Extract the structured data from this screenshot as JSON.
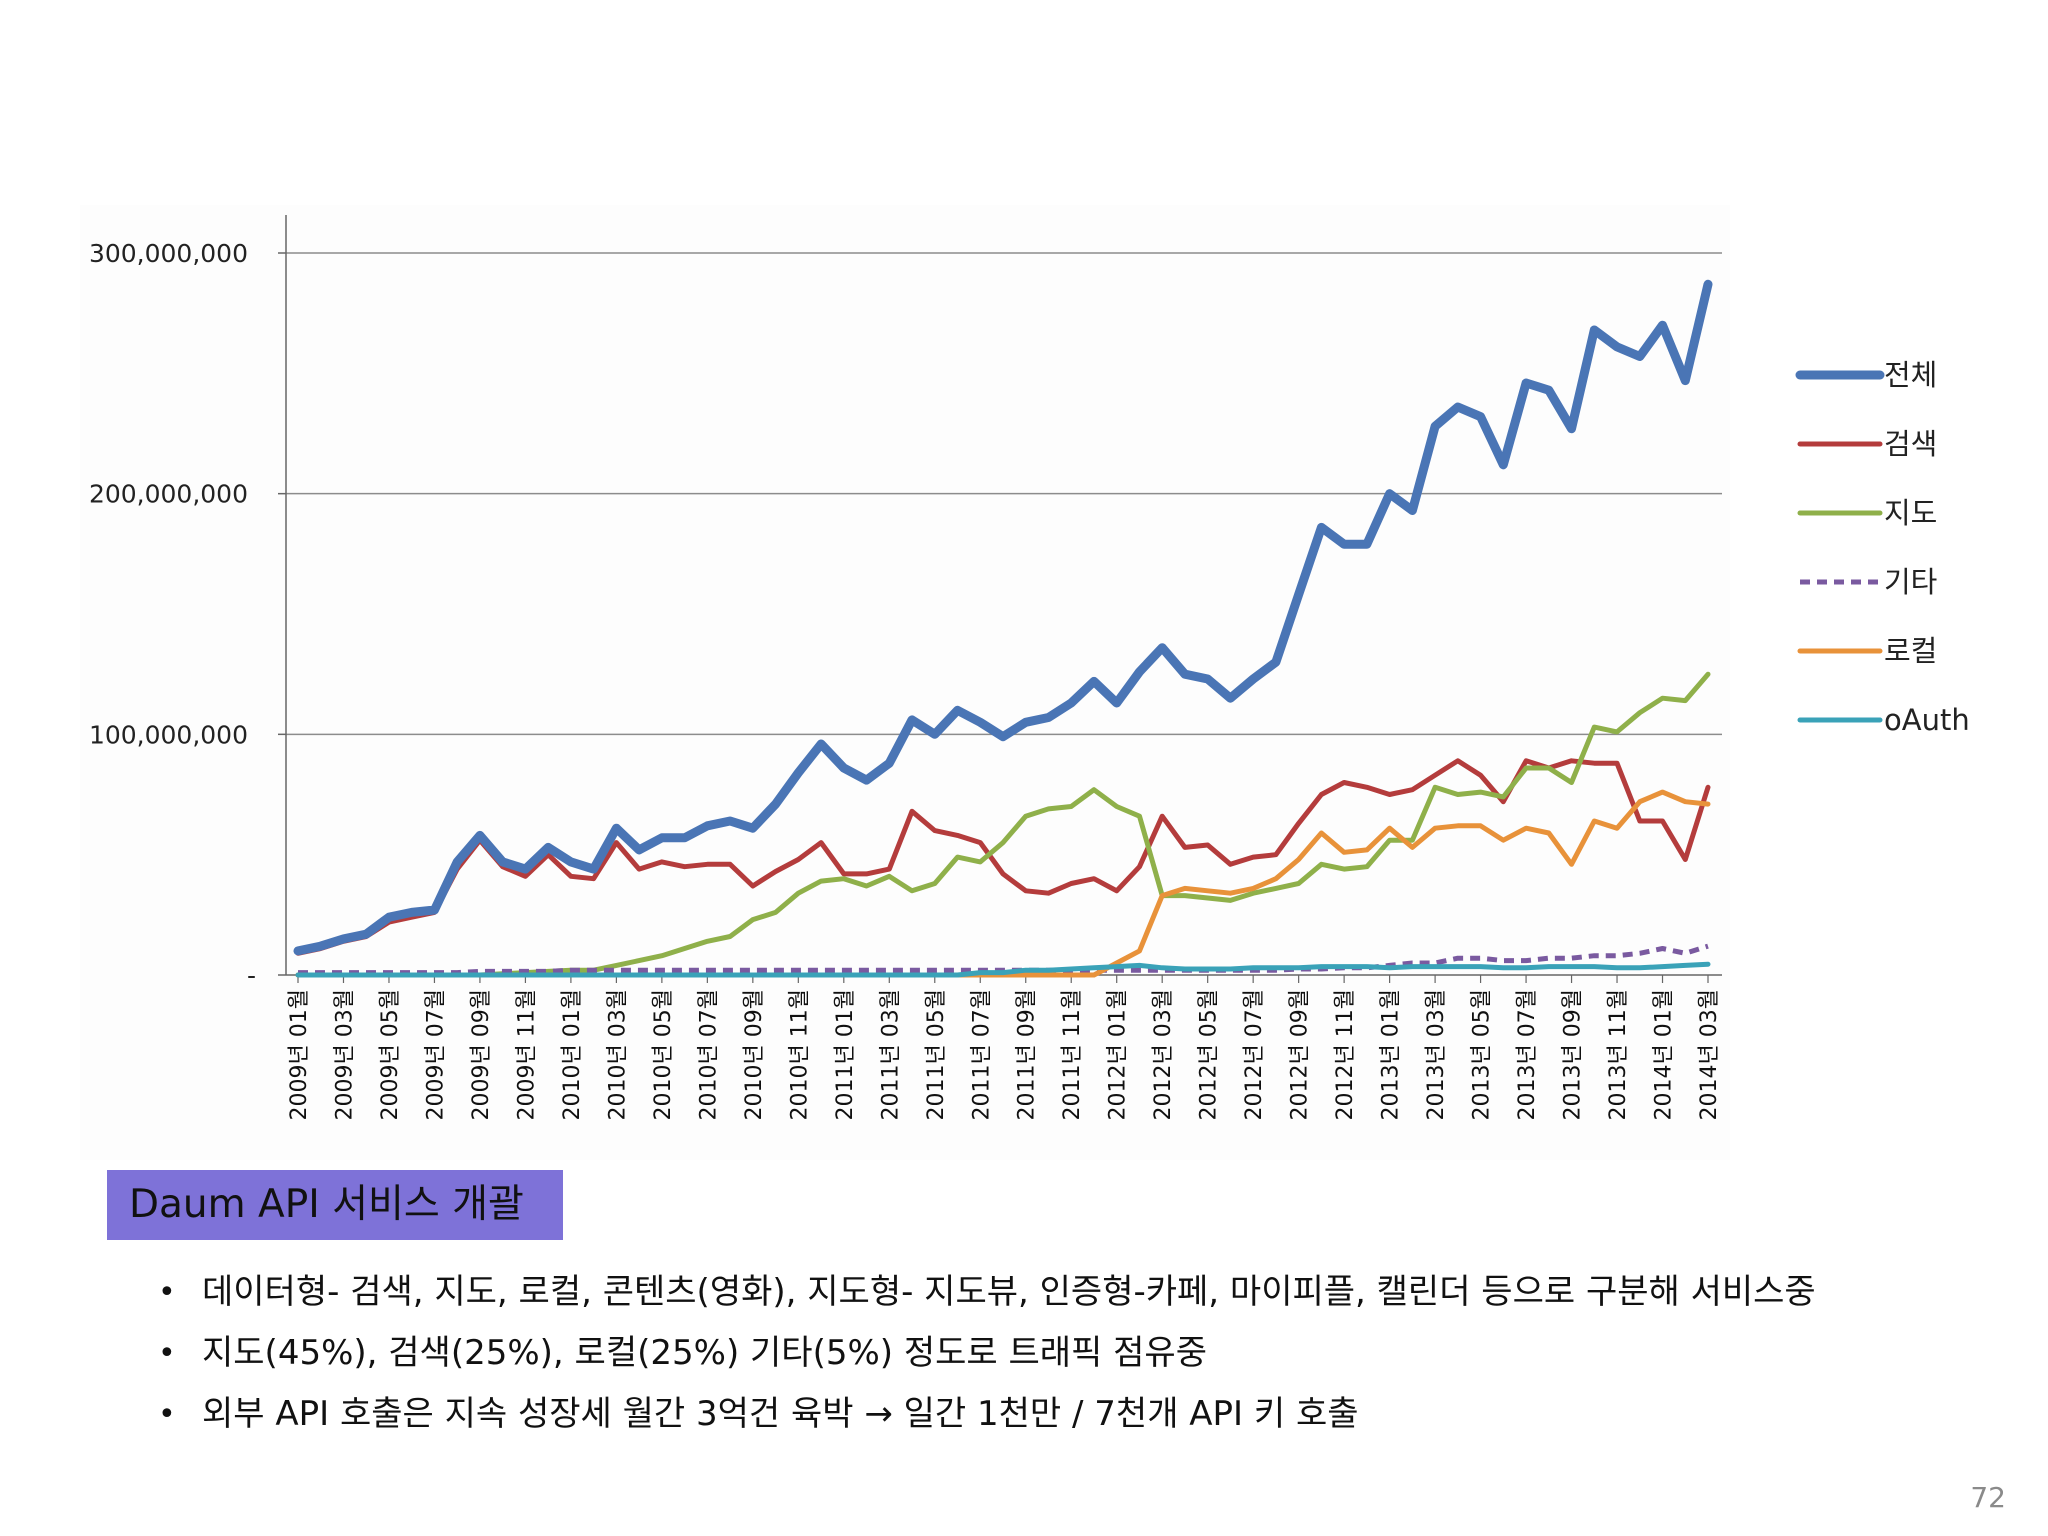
{
  "chart_data": {
    "type": "line",
    "title": "",
    "xlabel": "",
    "ylabel": "",
    "ylim": [
      0,
      300000000
    ],
    "yticks": [
      0,
      100000000,
      200000000,
      300000000
    ],
    "ytick_labels": [
      "-",
      "100,000,000",
      "200,000,000",
      "300,000,000"
    ],
    "grid": "horizontal",
    "legend": "right",
    "categories": [
      "2009-01",
      "2009-02",
      "2009-03",
      "2009-04",
      "2009-05",
      "2009-06",
      "2009-07",
      "2009-08",
      "2009-09",
      "2009-10",
      "2009-11",
      "2009-12",
      "2010-01",
      "2010-02",
      "2010-03",
      "2010-04",
      "2010-05",
      "2010-06",
      "2010-07",
      "2010-08",
      "2010-09",
      "2010-10",
      "2010-11",
      "2010-12",
      "2011-01",
      "2011-02",
      "2011-03",
      "2011-04",
      "2011-05",
      "2011-06",
      "2011-07",
      "2011-08",
      "2011-09",
      "2011-10",
      "2011-11",
      "2011-12",
      "2012-01",
      "2012-02",
      "2012-03",
      "2012-04",
      "2012-05",
      "2012-06",
      "2012-07",
      "2012-08",
      "2012-09",
      "2012-10",
      "2012-11",
      "2012-12",
      "2013-01",
      "2013-02",
      "2013-03",
      "2013-04",
      "2013-05",
      "2013-06",
      "2013-07",
      "2013-08",
      "2013-09",
      "2013-10",
      "2013-11",
      "2013-12",
      "2014-01",
      "2014-02",
      "2014-03"
    ],
    "tick_labels": [
      "2009년 01월",
      "2009년 03월",
      "2009년 05월",
      "2009년 07월",
      "2009년 09월",
      "2009년 11월",
      "2010년 01월",
      "2010년 03월",
      "2010년 05월",
      "2010년 07월",
      "2010년 09월",
      "2010년 11월",
      "2011년 01월",
      "2011년 03월",
      "2011년 05월",
      "2011년 07월",
      "2011년 09월",
      "2011년 11월",
      "2012년 01월",
      "2012년 03월",
      "2012년 05월",
      "2012년 07월",
      "2012년 09월",
      "2012년 11월",
      "2013년 01월",
      "2013년 03월",
      "2013년 05월",
      "2013년 07월",
      "2013년 09월",
      "2013년 11월",
      "2014년 01월",
      "2014년 03월"
    ],
    "series": [
      {
        "name": "전체",
        "color": "#4a75b5",
        "dash": "none",
        "width": 9,
        "values": [
          10000000,
          12000000,
          15000000,
          17000000,
          24000000,
          26000000,
          27000000,
          47000000,
          58000000,
          47000000,
          44000000,
          53000000,
          47000000,
          44000000,
          61000000,
          52000000,
          57000000,
          57000000,
          62000000,
          64000000,
          61000000,
          71000000,
          84000000,
          96000000,
          86000000,
          81000000,
          88000000,
          106000000,
          100000000,
          110000000,
          105000000,
          99000000,
          105000000,
          107000000,
          113000000,
          122000000,
          113000000,
          126000000,
          136000000,
          125000000,
          123000000,
          115000000,
          123000000,
          130000000,
          158000000,
          186000000,
          179000000,
          179000000,
          200000000,
          193000000,
          228000000,
          236000000,
          232000000,
          212000000,
          246000000,
          243000000,
          227000000,
          268000000,
          261000000,
          257000000,
          270000000,
          247000000,
          287000000
        ]
      },
      {
        "name": "검색",
        "color": "#b43c3c",
        "dash": "none",
        "width": 5,
        "values": [
          9000000,
          11000000,
          14000000,
          16000000,
          22000000,
          24000000,
          26000000,
          44000000,
          56000000,
          45000000,
          41000000,
          50000000,
          41000000,
          40000000,
          55000000,
          44000000,
          47000000,
          45000000,
          46000000,
          46000000,
          37000000,
          43000000,
          48000000,
          55000000,
          42000000,
          42000000,
          44000000,
          68000000,
          60000000,
          58000000,
          55000000,
          42000000,
          35000000,
          34000000,
          38000000,
          40000000,
          35000000,
          45000000,
          66000000,
          53000000,
          54000000,
          46000000,
          49000000,
          50000000,
          63000000,
          75000000,
          80000000,
          78000000,
          75000000,
          77000000,
          83000000,
          89000000,
          83000000,
          72000000,
          89000000,
          86000000,
          89000000,
          88000000,
          88000000,
          64000000,
          64000000,
          48000000,
          78000000
        ]
      },
      {
        "name": "지도",
        "color": "#8fb04a",
        "dash": "none",
        "width": 5,
        "values": [
          0,
          0,
          0,
          0,
          0,
          0,
          0,
          0,
          0,
          500000,
          1000000,
          1500000,
          2000000,
          2000000,
          4000000,
          6000000,
          8000000,
          11000000,
          14000000,
          16000000,
          23000000,
          26000000,
          34000000,
          39000000,
          40000000,
          37000000,
          41000000,
          35000000,
          38000000,
          49000000,
          47000000,
          55000000,
          66000000,
          69000000,
          70000000,
          77000000,
          70000000,
          66000000,
          33000000,
          33000000,
          32000000,
          31000000,
          34000000,
          36000000,
          38000000,
          46000000,
          44000000,
          45000000,
          56000000,
          56000000,
          78000000,
          75000000,
          76000000,
          74000000,
          86000000,
          86000000,
          80000000,
          103000000,
          101000000,
          109000000,
          115000000,
          114000000,
          125000000
        ]
      },
      {
        "name": "기타",
        "color": "#7a5aa0",
        "dash": "10,7",
        "width": 5,
        "values": [
          1000000,
          1000000,
          1000000,
          1000000,
          1000000,
          1000000,
          1000000,
          1000000,
          1500000,
          1500000,
          1500000,
          1500000,
          2000000,
          2000000,
          2000000,
          2000000,
          2000000,
          2000000,
          2000000,
          2000000,
          2000000,
          2000000,
          2000000,
          2000000,
          2000000,
          2000000,
          2000000,
          2000000,
          2000000,
          2000000,
          2000000,
          2000000,
          2000000,
          2000000,
          2000000,
          2000000,
          2000000,
          2000000,
          2000000,
          2000000,
          2000000,
          2000000,
          2000000,
          2000000,
          2500000,
          2500000,
          3000000,
          3000000,
          4000000,
          5000000,
          5000000,
          7000000,
          7000000,
          6000000,
          6000000,
          7000000,
          7000000,
          8000000,
          8000000,
          9000000,
          11000000,
          9000000,
          12000000
        ]
      },
      {
        "name": "로컬",
        "color": "#e8923a",
        "dash": "none",
        "width": 5,
        "values": [
          0,
          0,
          0,
          0,
          0,
          0,
          0,
          0,
          0,
          0,
          0,
          0,
          0,
          0,
          0,
          0,
          0,
          0,
          0,
          0,
          0,
          0,
          0,
          0,
          0,
          0,
          0,
          0,
          0,
          0,
          0,
          0,
          0,
          0,
          0,
          0,
          5000000,
          10000000,
          33000000,
          36000000,
          35000000,
          34000000,
          36000000,
          40000000,
          48000000,
          59000000,
          51000000,
          52000000,
          61000000,
          53000000,
          61000000,
          62000000,
          62000000,
          56000000,
          61000000,
          59000000,
          46000000,
          64000000,
          61000000,
          72000000,
          76000000,
          72000000,
          71000000
        ]
      },
      {
        "name": "oAuth",
        "color": "#3aa2b8",
        "dash": "none",
        "width": 5,
        "values": [
          0,
          0,
          0,
          0,
          0,
          0,
          0,
          0,
          0,
          0,
          0,
          0,
          0,
          0,
          0,
          0,
          0,
          0,
          0,
          0,
          0,
          0,
          0,
          0,
          0,
          0,
          0,
          0,
          0,
          0,
          1000000,
          1000000,
          2000000,
          2000000,
          2500000,
          3000000,
          3500000,
          4000000,
          3000000,
          2500000,
          2500000,
          2500000,
          3000000,
          3000000,
          3000000,
          3500000,
          3500000,
          3500000,
          3000000,
          3500000,
          3500000,
          3500000,
          3500000,
          3000000,
          3000000,
          3500000,
          3500000,
          3500000,
          3000000,
          3000000,
          3500000,
          4000000,
          4500000
        ]
      }
    ]
  },
  "slide": {
    "section_title": "Daum API 서비스 개괄",
    "bullets": [
      "데이터형- 검색, 지도, 로컬, 콘텐츠(영화), 지도형- 지도뷰, 인증형-카페, 마이피플, 캘린더 등으로 구분해 서비스중",
      "지도(45%), 검색(25%), 로컬(25%) 기타(5%) 정도로 트래픽 점유중",
      "외부 API 호출은 지속 성장세 월간 3억건 육박 → 일간 1천만 / 7천개 API 키 호출"
    ],
    "bullet_marker": "•",
    "page_number": "72"
  }
}
